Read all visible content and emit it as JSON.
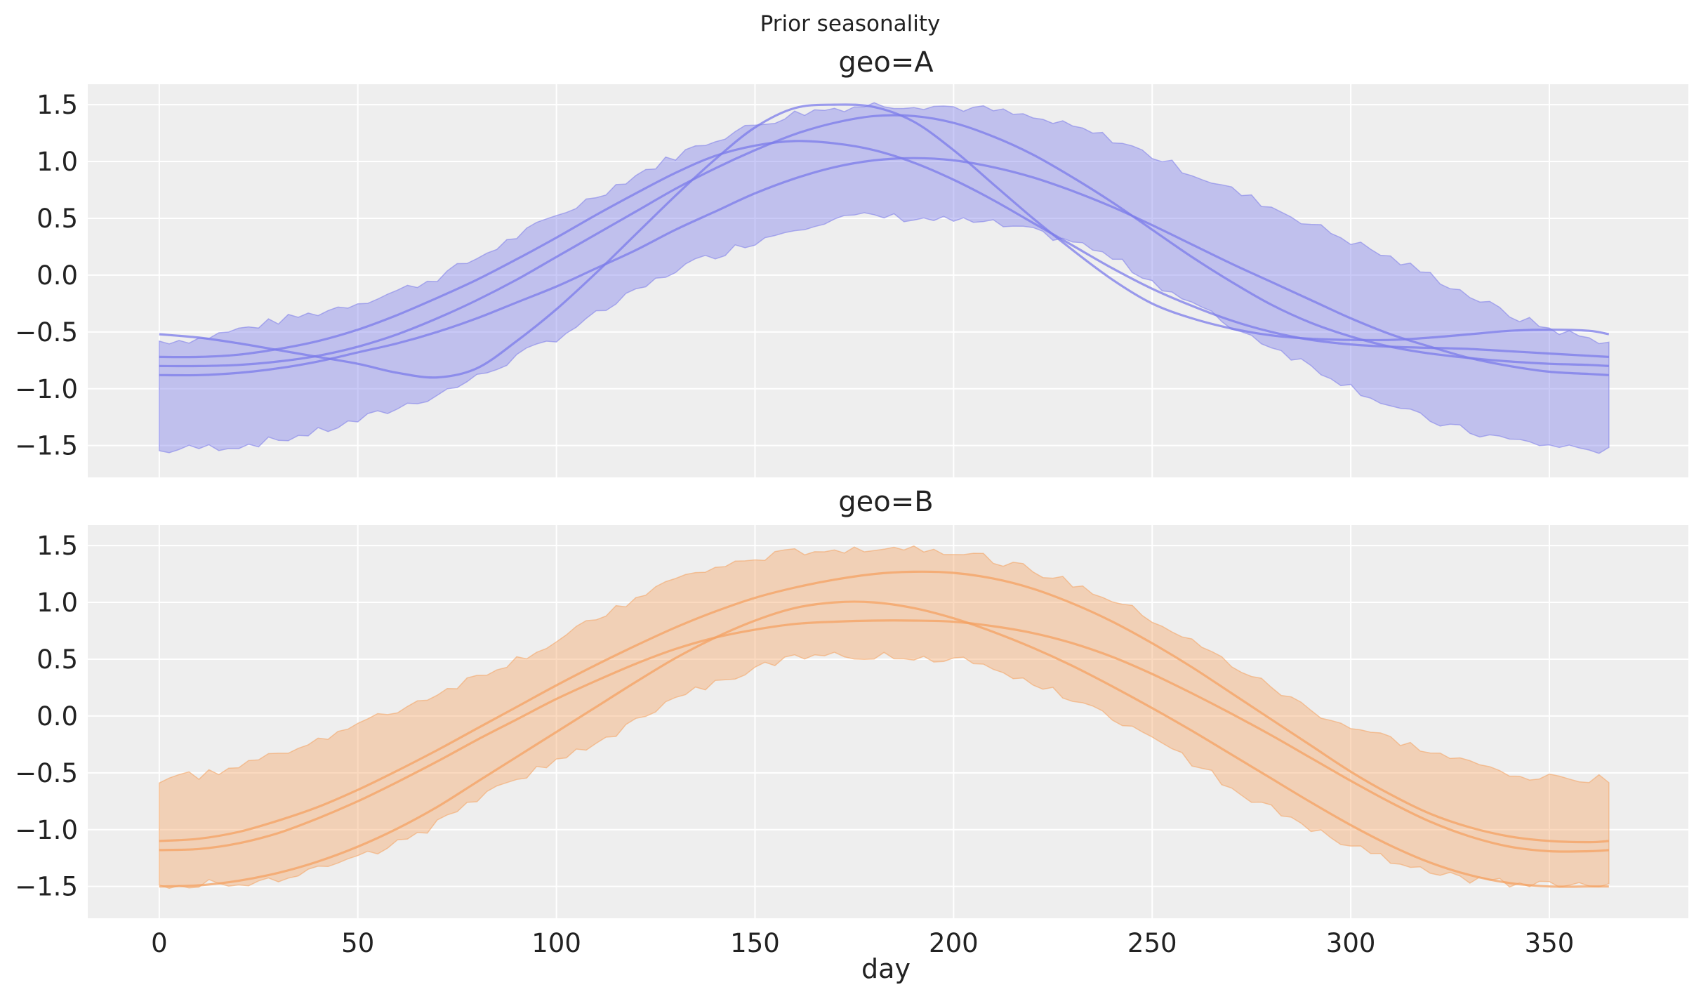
{
  "figure_title": "Prior seasonality",
  "chart_data": [
    {
      "type": "line",
      "title": "geo=A",
      "xlabel": "",
      "ylabel": "",
      "xlim": [
        -18,
        385
      ],
      "ylim": [
        -1.78,
        1.68
      ],
      "xticks": [
        0,
        50,
        100,
        150,
        200,
        250,
        300,
        350
      ],
      "xtick_labels": [
        "",
        "",
        "",
        "",
        "",
        "",
        "",
        ""
      ],
      "yticks": [
        -1.5,
        -1.0,
        -0.5,
        0.0,
        0.5,
        1.0,
        1.5
      ],
      "ytick_labels": [
        "−1.5",
        "−1.0",
        "−0.5",
        "0.0",
        "0.5",
        "1.0",
        "1.5"
      ],
      "grid": true,
      "color": "#7b7bea",
      "band": {
        "x": [
          0,
          10,
          20,
          30,
          40,
          50,
          60,
          70,
          80,
          90,
          100,
          110,
          120,
          130,
          140,
          150,
          160,
          170,
          180,
          190,
          200,
          210,
          220,
          230,
          240,
          250,
          260,
          270,
          280,
          290,
          300,
          310,
          320,
          330,
          340,
          350,
          360,
          365
        ],
        "upper": [
          -0.58,
          -0.56,
          -0.48,
          -0.4,
          -0.33,
          -0.24,
          -0.14,
          -0.02,
          0.15,
          0.34,
          0.52,
          0.7,
          0.88,
          1.05,
          1.2,
          1.32,
          1.42,
          1.47,
          1.5,
          1.5,
          1.48,
          1.45,
          1.38,
          1.3,
          1.2,
          1.05,
          0.9,
          0.75,
          0.6,
          0.45,
          0.3,
          0.15,
          0.0,
          -0.18,
          -0.35,
          -0.47,
          -0.56,
          -0.58
        ],
        "lower": [
          -1.55,
          -1.52,
          -1.5,
          -1.45,
          -1.38,
          -1.28,
          -1.17,
          -1.05,
          -0.9,
          -0.72,
          -0.55,
          -0.35,
          -0.15,
          0.05,
          0.18,
          0.3,
          0.42,
          0.5,
          0.52,
          0.5,
          0.48,
          0.45,
          0.38,
          0.3,
          0.15,
          -0.05,
          -0.25,
          -0.45,
          -0.62,
          -0.8,
          -0.98,
          -1.15,
          -1.28,
          -1.38,
          -1.45,
          -1.5,
          -1.53,
          -1.55
        ]
      },
      "series": [
        {
          "values": [
            -0.52,
            -0.55,
            -0.6,
            -0.66,
            -0.72,
            -0.78,
            -0.86,
            -0.9,
            -0.82,
            -0.58,
            -0.3,
            0.02,
            0.36,
            0.7,
            1.02,
            1.3,
            1.47,
            1.5,
            1.48,
            1.35,
            1.1,
            0.8,
            0.5,
            0.22,
            -0.04,
            -0.25,
            -0.38,
            -0.47,
            -0.53,
            -0.56,
            -0.57,
            -0.57,
            -0.55,
            -0.52,
            -0.49,
            -0.48,
            -0.49,
            -0.52
          ]
        },
        {
          "values": [
            -0.88,
            -0.88,
            -0.86,
            -0.82,
            -0.76,
            -0.68,
            -0.6,
            -0.5,
            -0.38,
            -0.24,
            -0.1,
            0.06,
            0.22,
            0.4,
            0.56,
            0.72,
            0.85,
            0.95,
            1.01,
            1.03,
            1.01,
            0.95,
            0.86,
            0.74,
            0.6,
            0.44,
            0.27,
            0.1,
            -0.06,
            -0.22,
            -0.38,
            -0.52,
            -0.63,
            -0.73,
            -0.8,
            -0.85,
            -0.87,
            -0.88
          ]
        },
        {
          "values": [
            -0.72,
            -0.72,
            -0.7,
            -0.65,
            -0.58,
            -0.48,
            -0.35,
            -0.2,
            -0.04,
            0.14,
            0.33,
            0.53,
            0.72,
            0.9,
            1.05,
            1.14,
            1.18,
            1.16,
            1.1,
            0.99,
            0.84,
            0.66,
            0.46,
            0.26,
            0.06,
            -0.12,
            -0.27,
            -0.4,
            -0.5,
            -0.57,
            -0.61,
            -0.63,
            -0.64,
            -0.65,
            -0.67,
            -0.69,
            -0.71,
            -0.72
          ]
        },
        {
          "values": [
            -0.8,
            -0.8,
            -0.79,
            -0.76,
            -0.71,
            -0.63,
            -0.52,
            -0.38,
            -0.22,
            -0.04,
            0.16,
            0.36,
            0.56,
            0.76,
            0.94,
            1.1,
            1.24,
            1.34,
            1.4,
            1.4,
            1.34,
            1.22,
            1.06,
            0.86,
            0.64,
            0.4,
            0.16,
            -0.06,
            -0.26,
            -0.42,
            -0.54,
            -0.63,
            -0.69,
            -0.73,
            -0.76,
            -0.78,
            -0.79,
            -0.8
          ]
        }
      ]
    },
    {
      "type": "line",
      "title": "geo=B",
      "xlabel": "day",
      "ylabel": "",
      "xlim": [
        -18,
        385
      ],
      "ylim": [
        -1.78,
        1.68
      ],
      "xticks": [
        0,
        50,
        100,
        150,
        200,
        250,
        300,
        350
      ],
      "xtick_labels": [
        "0",
        "50",
        "100",
        "150",
        "200",
        "250",
        "300",
        "350"
      ],
      "yticks": [
        -1.5,
        -1.0,
        -0.5,
        0.0,
        0.5,
        1.0,
        1.5
      ],
      "ytick_labels": [
        "−1.5",
        "−1.0",
        "−0.5",
        "0.0",
        "0.5",
        "1.0",
        "1.5"
      ],
      "grid": true,
      "color": "#f4a261",
      "band": {
        "x": [
          0,
          10,
          20,
          30,
          40,
          50,
          60,
          70,
          80,
          90,
          100,
          110,
          120,
          130,
          140,
          150,
          160,
          170,
          180,
          190,
          200,
          210,
          220,
          230,
          240,
          250,
          260,
          270,
          280,
          290,
          300,
          310,
          320,
          330,
          340,
          350,
          360,
          365
        ],
        "upper": [
          -0.55,
          -0.52,
          -0.45,
          -0.32,
          -0.2,
          -0.08,
          0.05,
          0.2,
          0.35,
          0.5,
          0.65,
          0.85,
          1.05,
          1.2,
          1.3,
          1.38,
          1.44,
          1.47,
          1.48,
          1.48,
          1.45,
          1.38,
          1.28,
          1.16,
          1.02,
          0.85,
          0.65,
          0.45,
          0.25,
          0.05,
          -0.1,
          -0.2,
          -0.32,
          -0.42,
          -0.5,
          -0.55,
          -0.55,
          -0.55
        ],
        "lower": [
          -1.48,
          -1.48,
          -1.47,
          -1.42,
          -1.35,
          -1.25,
          -1.12,
          -0.95,
          -0.75,
          -0.55,
          -0.4,
          -0.25,
          -0.05,
          0.15,
          0.3,
          0.42,
          0.5,
          0.53,
          0.54,
          0.53,
          0.5,
          0.42,
          0.3,
          0.15,
          0.0,
          -0.2,
          -0.4,
          -0.62,
          -0.82,
          -1.0,
          -1.15,
          -1.28,
          -1.38,
          -1.44,
          -1.47,
          -1.48,
          -1.48,
          -1.48
        ]
      },
      "series": [
        {
          "values": [
            -1.5,
            -1.49,
            -1.45,
            -1.38,
            -1.28,
            -1.15,
            -0.99,
            -0.8,
            -0.58,
            -0.36,
            -0.14,
            0.08,
            0.3,
            0.51,
            0.69,
            0.84,
            0.95,
            1.0,
            1.0,
            0.95,
            0.86,
            0.74,
            0.6,
            0.44,
            0.26,
            0.07,
            -0.13,
            -0.34,
            -0.55,
            -0.76,
            -0.96,
            -1.14,
            -1.29,
            -1.4,
            -1.47,
            -1.5,
            -1.5,
            -1.5
          ]
        },
        {
          "values": [
            -1.18,
            -1.17,
            -1.12,
            -1.03,
            -0.9,
            -0.75,
            -0.58,
            -0.4,
            -0.21,
            -0.03,
            0.15,
            0.31,
            0.46,
            0.59,
            0.69,
            0.76,
            0.81,
            0.83,
            0.84,
            0.84,
            0.83,
            0.79,
            0.73,
            0.64,
            0.52,
            0.37,
            0.2,
            0.02,
            -0.17,
            -0.37,
            -0.57,
            -0.76,
            -0.93,
            -1.06,
            -1.15,
            -1.19,
            -1.19,
            -1.18
          ]
        },
        {
          "values": [
            -1.1,
            -1.08,
            -1.02,
            -0.92,
            -0.8,
            -0.65,
            -0.48,
            -0.3,
            -0.11,
            0.08,
            0.27,
            0.45,
            0.62,
            0.78,
            0.92,
            1.04,
            1.13,
            1.2,
            1.25,
            1.27,
            1.26,
            1.21,
            1.12,
            0.99,
            0.83,
            0.64,
            0.43,
            0.2,
            -0.03,
            -0.26,
            -0.49,
            -0.69,
            -0.86,
            -0.98,
            -1.06,
            -1.1,
            -1.11,
            -1.1
          ]
        }
      ]
    }
  ]
}
